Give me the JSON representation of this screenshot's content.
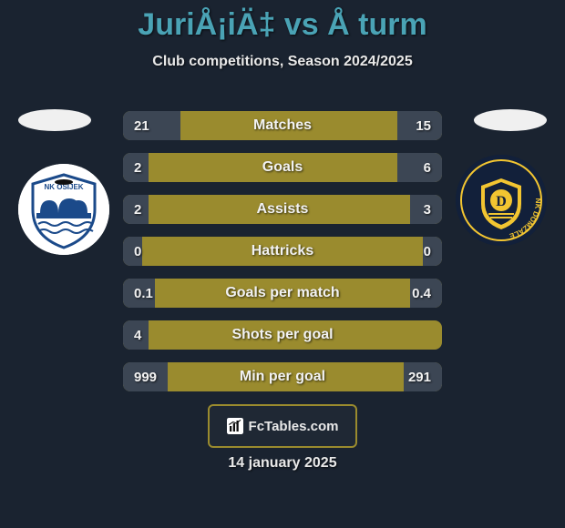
{
  "title": {
    "text": "JuriÅ¡iÄ‡ vs Å turm",
    "color": "#4aa3b5",
    "fontsize": 34
  },
  "subtitle": {
    "text": "Club competitions, Season 2024/2025",
    "color": "#e8e8e8",
    "fontsize": 16
  },
  "background_color": "#1a2330",
  "bar_track_color": "#9a8b2e",
  "bar_fill_left_color": "#3c4654",
  "bar_fill_right_color": "#3c4654",
  "label_text_color": "#f2f2f2",
  "value_text_color": "#f2f2f2",
  "value_fontsize": 15,
  "label_fontsize": 16,
  "left": {
    "oval_color": "#f0f0f0",
    "badge": {
      "bg": "#ffffff",
      "name": "NK OSIJEK",
      "primary": "#1b4a8a",
      "secondary": "#ffffff",
      "accent": "#0f0f0f"
    }
  },
  "right": {
    "oval_color": "#f0f0f0",
    "badge": {
      "bg": "#12203a",
      "name": "NK DOMŽALE",
      "primary": "#f2c531",
      "secondary": "#12203a",
      "letter": "D"
    }
  },
  "rows": [
    {
      "label": "Matches",
      "left": "21",
      "right": "15",
      "left_pct": 18,
      "right_pct": 14
    },
    {
      "label": "Goals",
      "left": "2",
      "right": "6",
      "left_pct": 8,
      "right_pct": 14
    },
    {
      "label": "Assists",
      "left": "2",
      "right": "3",
      "left_pct": 8,
      "right_pct": 10
    },
    {
      "label": "Hattricks",
      "left": "0",
      "right": "0",
      "left_pct": 6,
      "right_pct": 6
    },
    {
      "label": "Goals per match",
      "left": "0.1",
      "right": "0.4",
      "left_pct": 10,
      "right_pct": 10
    },
    {
      "label": "Shots per goal",
      "left": "4",
      "right": "",
      "left_pct": 8,
      "right_pct": 0
    },
    {
      "label": "Min per goal",
      "left": "999",
      "right": "291",
      "left_pct": 14,
      "right_pct": 12
    }
  ],
  "footer_logo": {
    "text": "FcTables.com",
    "border_color": "#9a8b2e",
    "text_color": "#e8e8e8",
    "icon_color": "#0f0f0f",
    "icon_bg": "#ffffff"
  },
  "date": {
    "text": "14 january 2025",
    "color": "#e8e8e8",
    "fontsize": 16
  }
}
